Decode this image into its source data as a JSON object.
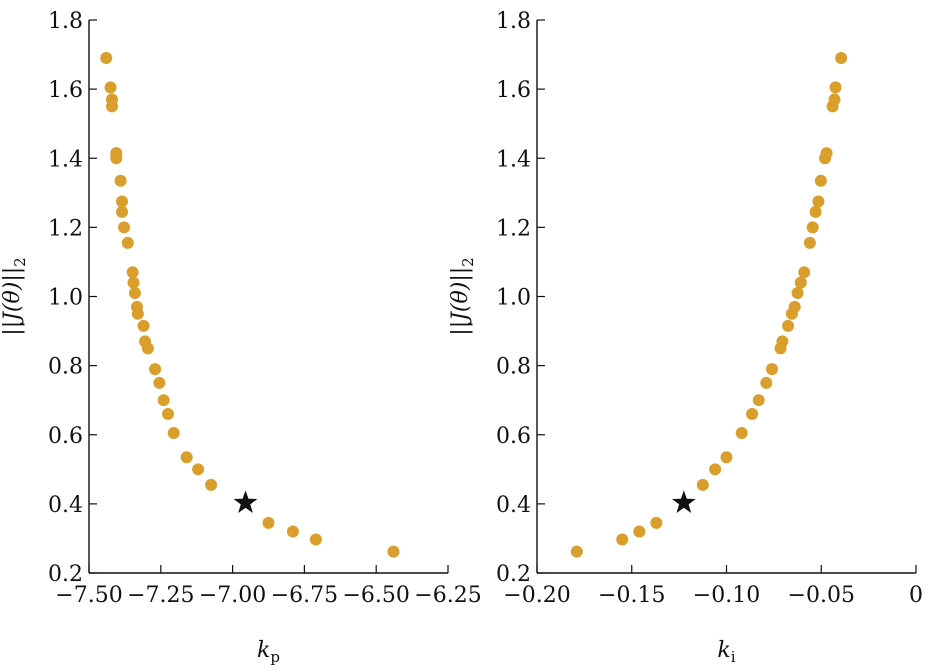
{
  "chart_data": [
    {
      "type": "scatter",
      "title": "",
      "xlabel": "k",
      "xlabel_sub": "p",
      "ylabel": "||J(θ)||",
      "ylabel_sub": "2",
      "xlim": [
        -7.5,
        -6.25
      ],
      "ylim": [
        0.2,
        1.8
      ],
      "xticks": [
        -7.5,
        -7.25,
        -7.0,
        -6.75,
        -6.5,
        -6.25
      ],
      "xtick_labels": [
        "−7.50",
        "−7.25",
        "−7.00",
        "−6.75",
        "−6.50",
        "−6.25"
      ],
      "yticks": [
        0.2,
        0.4,
        0.6,
        0.8,
        1.0,
        1.2,
        1.4,
        1.6,
        1.8
      ],
      "ytick_labels": [
        "0.2",
        "0.4",
        "0.6",
        "0.8",
        "1.0",
        "1.2",
        "1.4",
        "1.6",
        "1.8"
      ],
      "grid": false,
      "point_color": "#D99E2B",
      "star_color": "#111111",
      "points": {
        "x": [
          -7.44,
          -7.425,
          -7.42,
          -7.42,
          -7.405,
          -7.405,
          -7.39,
          -7.385,
          -7.385,
          -7.378,
          -7.365,
          -7.348,
          -7.345,
          -7.34,
          -7.333,
          -7.33,
          -7.31,
          -7.305,
          -7.295,
          -7.27,
          -7.255,
          -7.24,
          -7.225,
          -7.205,
          -7.16,
          -7.12,
          -7.075,
          -6.875,
          -6.79,
          -6.71,
          -6.44
        ],
        "y": [
          1.69,
          1.605,
          1.57,
          1.55,
          1.415,
          1.4,
          1.335,
          1.275,
          1.245,
          1.2,
          1.155,
          1.07,
          1.04,
          1.01,
          0.97,
          0.95,
          0.915,
          0.87,
          0.85,
          0.79,
          0.75,
          0.7,
          0.66,
          0.605,
          0.535,
          0.5,
          0.455,
          0.345,
          0.32,
          0.297,
          0.262
        ]
      },
      "star": {
        "x": -6.955,
        "y": 0.403
      }
    },
    {
      "type": "scatter",
      "title": "",
      "xlabel": "k",
      "xlabel_sub": "i",
      "ylabel": "||J(θ)||",
      "ylabel_sub": "2",
      "xlim": [
        -0.2,
        0.0
      ],
      "ylim": [
        0.2,
        1.8
      ],
      "xticks": [
        -0.2,
        -0.15,
        -0.1,
        -0.05,
        0.0
      ],
      "xtick_labels": [
        "−0.20",
        "−0.15",
        "−0.10",
        "−0.05",
        "0"
      ],
      "yticks": [
        0.2,
        0.4,
        0.6,
        0.8,
        1.0,
        1.2,
        1.4,
        1.6,
        1.8
      ],
      "ytick_labels": [
        "0.2",
        "0.4",
        "0.6",
        "0.8",
        "1.0",
        "1.2",
        "1.4",
        "1.6",
        "1.8"
      ],
      "grid": false,
      "point_color": "#D99E2B",
      "star_color": "#111111",
      "points": {
        "x": [
          -0.179,
          -0.155,
          -0.146,
          -0.137,
          -0.1125,
          -0.106,
          -0.1,
          -0.092,
          -0.0865,
          -0.083,
          -0.079,
          -0.076,
          -0.0715,
          -0.0705,
          -0.0675,
          -0.0655,
          -0.064,
          -0.0625,
          -0.0608,
          -0.059,
          -0.056,
          -0.0545,
          -0.053,
          -0.0515,
          -0.0502,
          -0.048,
          -0.0472,
          -0.044,
          -0.043,
          -0.0425,
          -0.0395
        ],
        "y": [
          0.262,
          0.297,
          0.32,
          0.345,
          0.455,
          0.5,
          0.535,
          0.605,
          0.66,
          0.7,
          0.75,
          0.79,
          0.85,
          0.87,
          0.915,
          0.95,
          0.97,
          1.01,
          1.04,
          1.07,
          1.155,
          1.2,
          1.245,
          1.275,
          1.335,
          1.4,
          1.415,
          1.55,
          1.57,
          1.605,
          1.69
        ]
      },
      "star": {
        "x": -0.1225,
        "y": 0.403
      }
    }
  ]
}
